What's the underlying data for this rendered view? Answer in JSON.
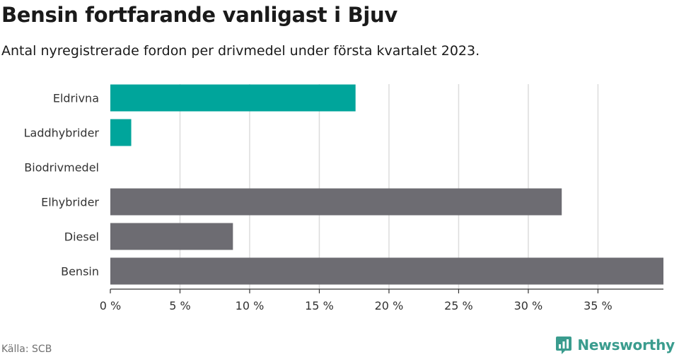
{
  "chart_data": {
    "type": "bar",
    "orientation": "horizontal",
    "title": "Bensin fortfarande vanligast i Bjuv",
    "subtitle": "Antal nyregistrerade fordon per drivmedel under första kvartalet 2023.",
    "categories": [
      "Eldrivna",
      "Laddhybrider",
      "Biodrivmedel",
      "Elhybrider",
      "Diesel",
      "Bensin"
    ],
    "values": [
      17.6,
      1.5,
      0,
      32.4,
      8.8,
      39.7
    ],
    "bar_colors": [
      "#00a59b",
      "#00a59b",
      "#00a59b",
      "#6d6c72",
      "#6d6c72",
      "#6d6c72"
    ],
    "xlim": [
      0,
      39.7
    ],
    "xticks": [
      0,
      5,
      10,
      15,
      20,
      25,
      30,
      35
    ],
    "xtick_labels": [
      "0 %",
      "5 %",
      "10 %",
      "15 %",
      "20 %",
      "25 %",
      "30 %",
      "35 %"
    ],
    "xlabel": "",
    "ylabel": "",
    "grid": true,
    "legend": "none"
  },
  "source": "Källa: SCB",
  "brand": {
    "name": "Newsworthy",
    "icon": "newsworthy-logo-icon",
    "color": "#3a9c8e"
  }
}
